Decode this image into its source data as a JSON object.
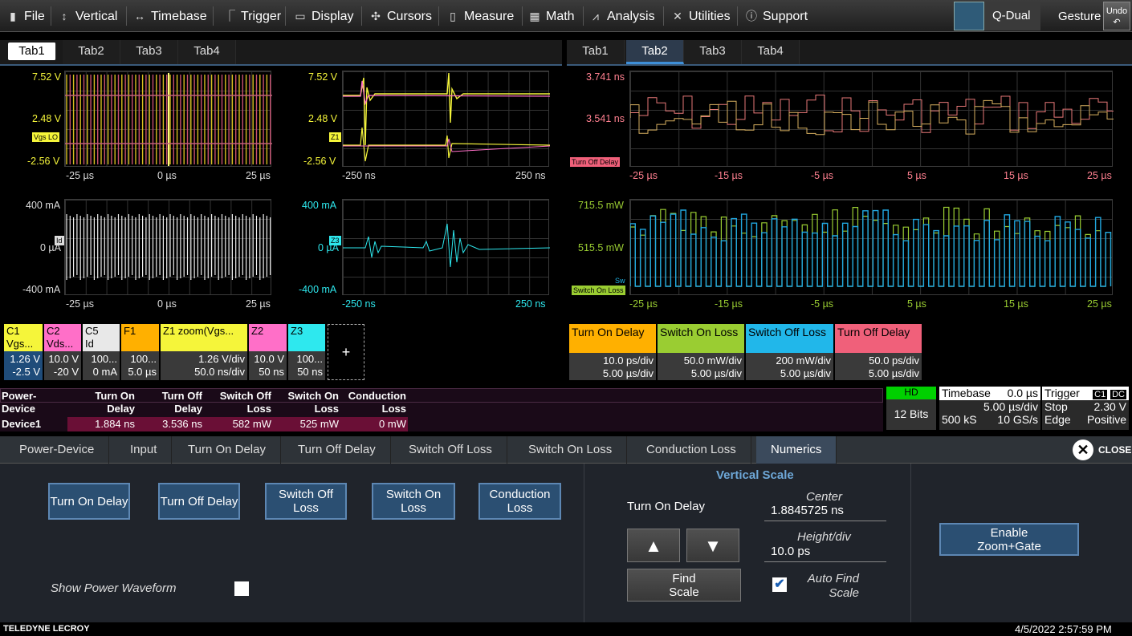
{
  "menu": {
    "file": "File",
    "vertical": "Vertical",
    "timebase": "Timebase",
    "trigger": "Trigger",
    "display": "Display",
    "cursors": "Cursors",
    "measure": "Measure",
    "math": "Math",
    "analysis": "Analysis",
    "utilities": "Utilities",
    "support": "Support",
    "layout": "Q-Dual",
    "gesture": "Gesture",
    "undo": "Undo"
  },
  "tabs_left": [
    "Tab1",
    "Tab2",
    "Tab3",
    "Tab4"
  ],
  "tabs_right": [
    "Tab1",
    "Tab2",
    "Tab3",
    "Tab4"
  ],
  "plots": {
    "p1": {
      "ytop": "7.52 V",
      "ymid": "2.48 V",
      "ybot": "-2.56 V",
      "xl": "-25 µs",
      "xm": "0 µs",
      "xr": "25 µs",
      "tag": "Vgs LO"
    },
    "p2": {
      "ytop": "7.52 V",
      "ymid": "2.48 V",
      "ybot": "-2.56 V",
      "xl": "-250 ns",
      "xr": "250 ns",
      "tag": "Z1"
    },
    "p3": {
      "ytop": "400 mA",
      "ymid": "0 µA",
      "ybot": "-400 mA",
      "xl": "-25 µs",
      "xm": "0 µs",
      "xr": "25 µs",
      "tag": "Id"
    },
    "p4": {
      "ytop": "400 mA",
      "ymid": "0 µA",
      "ybot": "-400 mA",
      "xl": "-250 ns",
      "xr": "250 ns",
      "tag": "Z3"
    },
    "p5": {
      "ytop": "3.741 ns",
      "ymid": "3.541 ns",
      "tag": "Turn Off Delay",
      "x": [
        "-25 µs",
        "-15 µs",
        "-5 µs",
        "5 µs",
        "15 µs",
        "25 µs"
      ]
    },
    "p6": {
      "ytop": "715.5 mW",
      "ymid": "515.5 mW",
      "tag1": "Sw",
      "tag": "Switch On Loss",
      "x": [
        "-25 µs",
        "-15 µs",
        "-5 µs",
        "5 µs",
        "15 µs",
        "25 µs"
      ]
    }
  },
  "descriptors": [
    {
      "h1": "C1",
      "h2": "Vgs...",
      "v1": "1.26 V",
      "v2": "-2.5 V",
      "color": "#f5f53a"
    },
    {
      "h1": "C2",
      "h2": "Vds...",
      "v1": "10.0 V",
      "v2": "-20 V",
      "color": "#ff6fc8"
    },
    {
      "h1": "C5",
      "h2": "Id",
      "v1": "100...",
      "v2": "0 mA",
      "color": "#e8e8e8"
    },
    {
      "h1": "F1",
      "h2": "",
      "v1": "100...",
      "v2": "5.0 µs",
      "color": "#ffb000"
    },
    {
      "h1": "Z1  zoom(Vgs...",
      "h2": "",
      "v1": "1.26 V/div",
      "v2": "50.0 ns/div",
      "color": "#f5f53a"
    },
    {
      "h1": "Z2",
      "h2": "",
      "v1": "10.0 V",
      "v2": "50 ns",
      "color": "#ff6fc8"
    },
    {
      "h1": "Z3",
      "h2": "",
      "v1": "100...",
      "v2": "50 ns",
      "color": "#2ee8ee"
    }
  ],
  "add_label": "+",
  "measure_desc": [
    {
      "h": "Turn On Delay",
      "v1": "10.0 ps/div",
      "v2": "5.00 µs/div",
      "color": "#ffb000"
    },
    {
      "h": "Switch On Loss",
      "v1": "50.0 mW/div",
      "v2": "5.00 µs/div",
      "color": "#9acd32"
    },
    {
      "h": "Switch Off Loss",
      "v1": "200 mW/div",
      "v2": "5.00 µs/div",
      "color": "#21b7ea"
    },
    {
      "h": "Turn Off Delay",
      "v1": "50.0 ps/div",
      "v2": "5.00 µs/div",
      "color": "#f0607a"
    }
  ],
  "table": {
    "h0a": "Power-",
    "h0b": "Device",
    "h1a": "Turn On",
    "h1b": "Delay",
    "h2a": "Turn Off",
    "h2b": "Delay",
    "h3a": "Switch Off",
    "h3b": "Loss",
    "h4a": "Switch On",
    "h4b": "Loss",
    "h5a": "Conduction",
    "h5b": "Loss",
    "row": {
      "name": "Device1",
      "c1": "1.884 ns",
      "c2": "3.536 ns",
      "c3": "582 mW",
      "c4": "525 mW",
      "c5": "0 mW"
    }
  },
  "status": {
    "hd": "HD",
    "bits": "12 Bits",
    "tb_label": "Timebase",
    "tb_delay": "0.0 µs",
    "tb_div": "5.00 µs/div",
    "tb_pts": "500 kS",
    "tb_rate": "10 GS/s",
    "trig_label": "Trigger",
    "trig_ch": "C1",
    "trig_cpl": "DC",
    "trig_mode": "Stop",
    "trig_level": "2.30 V",
    "trig_type": "Edge",
    "trig_slope": "Positive"
  },
  "dialog": {
    "tabs": [
      "Power-Device",
      "Input",
      "Turn On Delay",
      "Turn Off Delay",
      "Switch Off Loss",
      "Switch On Loss",
      "Conduction Loss",
      "Numerics"
    ],
    "close": "CLOSE",
    "btn1": "Turn On Delay",
    "btn2": "Turn Off Delay",
    "btn3a": "Switch Off",
    "btn3b": "Loss",
    "btn4a": "Switch On",
    "btn4b": "Loss",
    "btn5a": "Conduction",
    "btn5b": "Loss",
    "show_power": "Show Power Waveform",
    "vs_title": "Vertical Scale",
    "vs_source": "Turn On Delay",
    "center_label": "Center",
    "center_value": "1.8845725 ns",
    "height_label": "Height/div",
    "height_value": "10.0 ps",
    "find_a": "Find",
    "find_b": "Scale",
    "auto_a": "Auto Find",
    "auto_b": "Scale",
    "enable_a": "Enable",
    "enable_b": "Zoom+Gate"
  },
  "footer": {
    "brand": "TELEDYNE LECROY",
    "datetime": "4/5/2022 2:57:59 PM"
  }
}
